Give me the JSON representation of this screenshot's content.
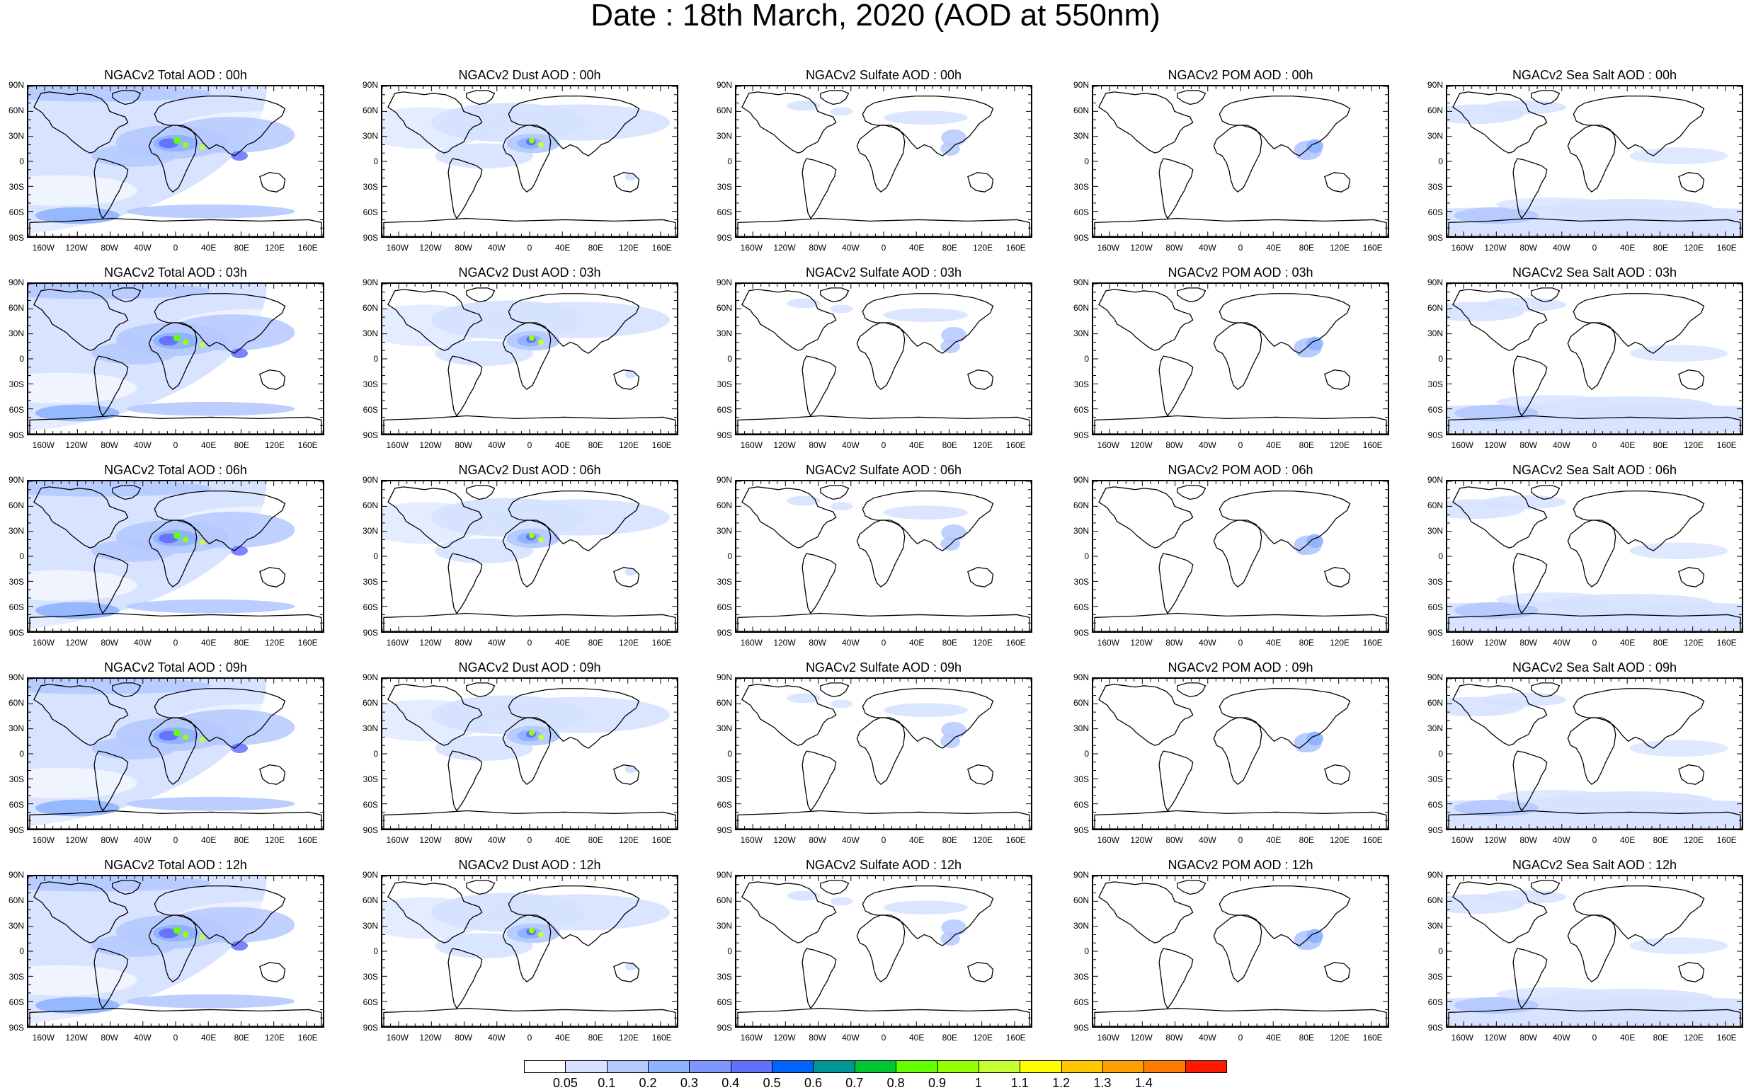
{
  "title": "Date : 18th March, 2020 (AOD at 550nm)",
  "lat_ticks": [
    "90N",
    "60N",
    "30N",
    "0",
    "30S",
    "60S",
    "90S"
  ],
  "lon_ticks": [
    "160W",
    "120W",
    "80W",
    "40W",
    "0",
    "40E",
    "80E",
    "120E",
    "160E"
  ],
  "species": [
    {
      "key": "total",
      "pattern": "total",
      "titles": [
        "NGACv2 Total AOD : 00h",
        "NGACv2 Total AOD : 03h",
        "NGACv2 Total AOD : 06h",
        "NGACv2 Total AOD : 09h",
        "NGACv2 Total AOD :  12h"
      ]
    },
    {
      "key": "dust",
      "pattern": "dust",
      "titles": [
        "NGACv2 Dust AOD : 00h",
        "NGACv2 Dust AOD : 03h",
        "NGACv2 Dust AOD : 06h",
        "NGACv2 Dust AOD : 09h",
        "NGACv2 Dust AOD : 12h"
      ]
    },
    {
      "key": "sulfate",
      "pattern": "sulfate",
      "titles": [
        "NGACv2 Sulfate AOD : 00h",
        "NGACv2 Sulfate AOD : 03h",
        "NGACv2 Sulfate AOD : 06h",
        "NGACv2 Sulfate AOD : 09h",
        "NGACv2 Sulfate AOD : 12h"
      ]
    },
    {
      "key": "pom",
      "pattern": "pom",
      "titles": [
        "NGACv2 POM AOD : 00h",
        "NGACv2 POM AOD : 03h",
        "NGACv2 POM AOD : 06h",
        "NGACv2 POM AOD : 09h",
        "NGACv2 POM  AOD : 12h"
      ]
    },
    {
      "key": "seasalt",
      "pattern": "seasalt",
      "titles": [
        "NGACv2 Sea Salt AOD : 00h",
        "NGACv2 Sea Salt AOD : 03h",
        "NGACv2 Sea Salt AOD : 06h",
        "NGACv2 Sea Salt  AOD : 09h",
        "NGACv2 Sea Salt AOD : 12h"
      ]
    }
  ],
  "colorbar": {
    "labels": [
      "0.05",
      "0.1",
      "0.2",
      "0.3",
      "0.4",
      "0.5",
      "0.6",
      "0.7",
      "0.8",
      "0.9",
      "1",
      "1.1",
      "1.2",
      "1.3",
      "1.4"
    ],
    "colors": [
      "#ffffff",
      "#d6e2ff",
      "#b5c9ff",
      "#8eb2ff",
      "#7f96ff",
      "#6370ff",
      "#0063ff",
      "#009696",
      "#00c633",
      "#63ff00",
      "#96ff00",
      "#c6ff33",
      "#ffff00",
      "#ffc600",
      "#ffa000",
      "#ff7c00",
      "#ff1900"
    ]
  }
}
